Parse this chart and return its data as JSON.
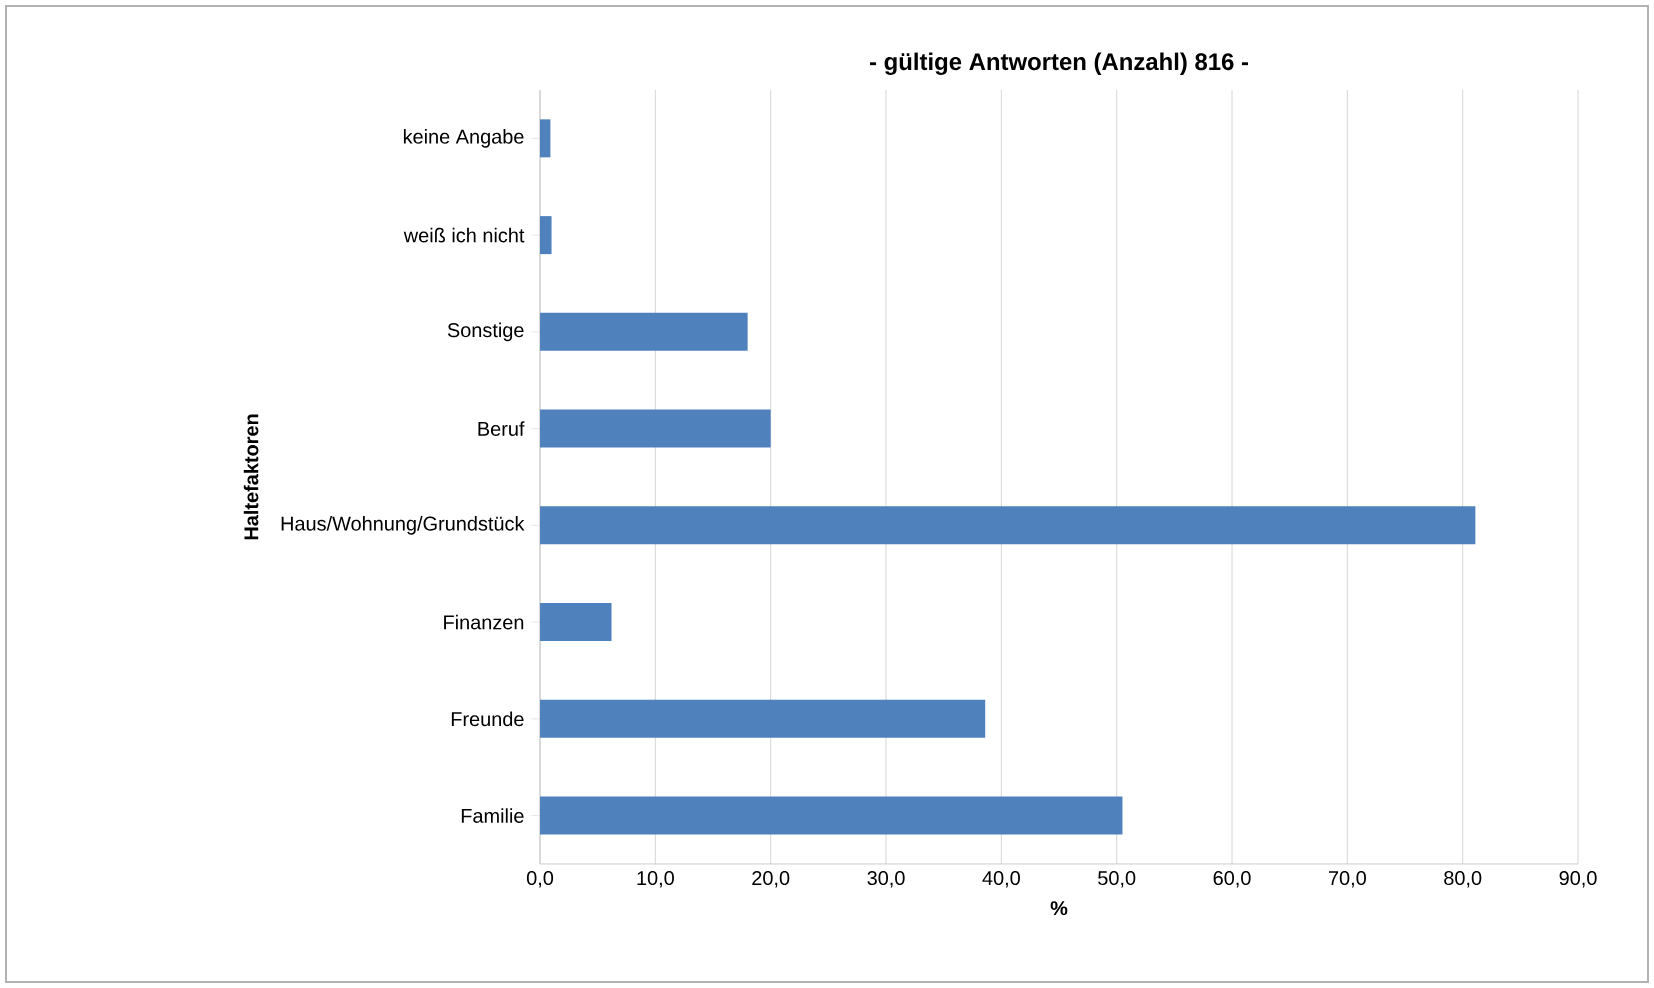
{
  "chart_data": {
    "type": "bar",
    "orientation": "horizontal",
    "title": "- gültige Antworten (Anzahl) 816 -",
    "xlabel": "%",
    "ylabel": "Haltefaktoren",
    "categories": [
      "keine Angabe",
      "weiß ich nicht",
      "Sonstige",
      "Beruf",
      "Haus/Wohnung/Grundstück",
      "Finanzen",
      "Freunde",
      "Familie"
    ],
    "values": [
      0.9,
      1.0,
      18.0,
      20.0,
      81.1,
      6.2,
      38.6,
      50.5
    ],
    "color": "#4f81bd",
    "xlim": [
      0,
      90
    ],
    "xticks": [
      {
        "value": 0,
        "label": "0,0"
      },
      {
        "value": 10,
        "label": "10,0"
      },
      {
        "value": 20,
        "label": "20,0"
      },
      {
        "value": 30,
        "label": "30,0"
      },
      {
        "value": 40,
        "label": "40,0"
      },
      {
        "value": 50,
        "label": "50,0"
      },
      {
        "value": 60,
        "label": "60,0"
      },
      {
        "value": 70,
        "label": "70,0"
      },
      {
        "value": 80,
        "label": "80,0"
      },
      {
        "value": 90,
        "label": "90,0"
      }
    ],
    "grid": "x"
  }
}
